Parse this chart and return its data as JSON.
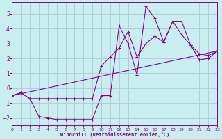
{
  "xlabel": "Windchill (Refroidissement éolien,°C)",
  "background_color": "#c8eef0",
  "grid_color": "#b0c8d8",
  "line_color": "#880088",
  "xlim": [
    0,
    23
  ],
  "ylim": [
    -2.5,
    5.8
  ],
  "xticks": [
    0,
    1,
    2,
    3,
    4,
    5,
    6,
    7,
    8,
    9,
    10,
    11,
    12,
    13,
    14,
    15,
    16,
    17,
    18,
    19,
    20,
    21,
    22,
    23
  ],
  "yticks": [
    -2,
    -1,
    0,
    1,
    2,
    3,
    4,
    5
  ],
  "line1_x": [
    0,
    1,
    2,
    3,
    4,
    5,
    6,
    7,
    8,
    9,
    10,
    11,
    12,
    13,
    14,
    15,
    16,
    17,
    18,
    19,
    20,
    21,
    22,
    23
  ],
  "line1_y": [
    -0.5,
    -0.3,
    -0.7,
    -1.9,
    -2.0,
    -2.1,
    -2.1,
    -2.1,
    -2.1,
    -2.1,
    -0.5,
    -0.5,
    4.2,
    3.0,
    0.9,
    5.5,
    4.7,
    3.1,
    4.5,
    4.5,
    2.9,
    1.9,
    2.0,
    2.5
  ],
  "line2_x": [
    0,
    1,
    2,
    3,
    4,
    5,
    6,
    7,
    8,
    9,
    10,
    11,
    12,
    13,
    14,
    15,
    16,
    17,
    18,
    19,
    20,
    21,
    22,
    23
  ],
  "line2_y": [
    -0.5,
    -0.3,
    -0.7,
    -0.7,
    -0.7,
    -0.7,
    -0.7,
    -0.7,
    -0.7,
    -0.7,
    1.5,
    2.1,
    2.7,
    3.8,
    2.1,
    3.0,
    3.5,
    3.1,
    4.5,
    3.6,
    2.9,
    2.3,
    2.2,
    2.5
  ],
  "line3_x": [
    0,
    23
  ],
  "line3_y": [
    -0.5,
    2.5
  ]
}
